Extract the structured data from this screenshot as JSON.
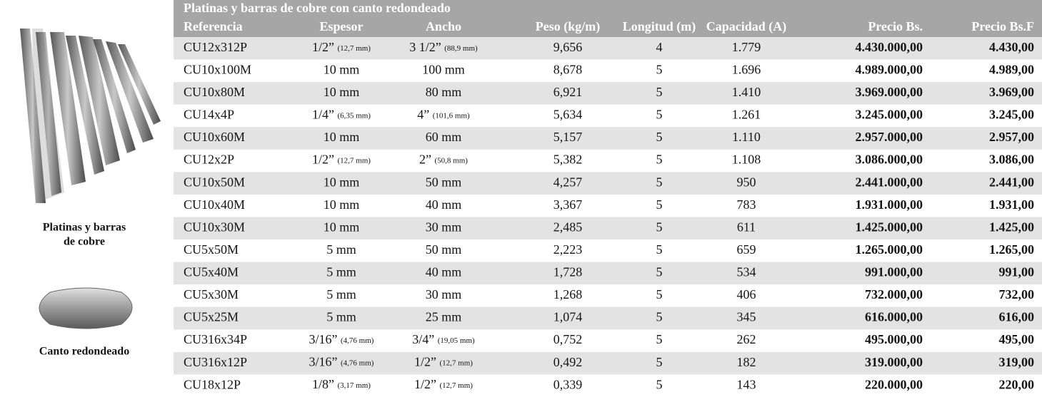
{
  "sidebar": {
    "captions": [
      [
        "Platinas y barras",
        "de cobre"
      ],
      [
        "Canto redondeado"
      ]
    ]
  },
  "table": {
    "title": "Platinas y barras de cobre con canto redondeado",
    "columns": [
      "Referencia",
      "Espesor",
      "Ancho",
      "Peso (kg/m)",
      "Longitud (m)",
      "Capacidad (A)",
      "Precio Bs.",
      "Precio Bs.F"
    ],
    "rows": [
      [
        "CU12x312P",
        [
          "1/2”",
          "(12,7 mm)"
        ],
        [
          "3 1/2”",
          "(88,9 mm)"
        ],
        "9,656",
        "4",
        "1.779",
        "4.430.000,00",
        "4.430,00"
      ],
      [
        "CU10x100M",
        "10 mm",
        "100 mm",
        "8,678",
        "5",
        "1.696",
        "4.989.000,00",
        "4.989,00"
      ],
      [
        "CU10x80M",
        "10 mm",
        "80 mm",
        "6,921",
        "5",
        "1.410",
        "3.969.000,00",
        "3.969,00"
      ],
      [
        "CU14x4P",
        [
          "1/4”",
          "(6,35 mm)"
        ],
        [
          "4”",
          "(101,6 mm)"
        ],
        "5,634",
        "5",
        "1.261",
        "3.245.000,00",
        "3.245,00"
      ],
      [
        "CU10x60M",
        "10 mm",
        "60 mm",
        "5,157",
        "5",
        "1.110",
        "2.957.000,00",
        "2.957,00"
      ],
      [
        "CU12x2P",
        [
          "1/2”",
          "(12,7 mm)"
        ],
        [
          "2”",
          "(50,8 mm)"
        ],
        "5,382",
        "5",
        "1.108",
        "3.086.000,00",
        "3.086,00"
      ],
      [
        "CU10x50M",
        "10 mm",
        "50 mm",
        "4,257",
        "5",
        "950",
        "2.441.000,00",
        "2.441,00"
      ],
      [
        "CU10x40M",
        "10 mm",
        "40 mm",
        "3,367",
        "5",
        "783",
        "1.931.000,00",
        "1.931,00"
      ],
      [
        "CU10x30M",
        "10 mm",
        "30 mm",
        "2,485",
        "5",
        "611",
        "1.425.000,00",
        "1.425,00"
      ],
      [
        "CU5x50M",
        "5 mm",
        "50 mm",
        "2,223",
        "5",
        "659",
        "1.265.000,00",
        "1.265,00"
      ],
      [
        "CU5x40M",
        "5 mm",
        "40 mm",
        "1,728",
        "5",
        "534",
        "991.000,00",
        "991,00"
      ],
      [
        "CU5x30M",
        "5 mm",
        "30 mm",
        "1,268",
        "5",
        "406",
        "732.000,00",
        "732,00"
      ],
      [
        "CU5x25M",
        "5 mm",
        "25 mm",
        "1,074",
        "5",
        "345",
        "616.000,00",
        "616,00"
      ],
      [
        "CU316x34P",
        [
          "3/16”",
          "(4,76 mm)"
        ],
        [
          "3/4”",
          "(19,05 mm)"
        ],
        "0,752",
        "5",
        "262",
        "495.000,00",
        "495,00"
      ],
      [
        "CU316x12P",
        [
          "3/16”",
          "(4,76 mm)"
        ],
        [
          "1/2”",
          "(12,7 mm)"
        ],
        "0,492",
        "5",
        "182",
        "319.000,00",
        "319,00"
      ],
      [
        "CU18x12P",
        [
          "1/8”",
          "(3,17 mm)"
        ],
        [
          "1/2”",
          "(12,7 mm)"
        ],
        "0,339",
        "5",
        "143",
        "220.000,00",
        "220,00"
      ]
    ]
  }
}
